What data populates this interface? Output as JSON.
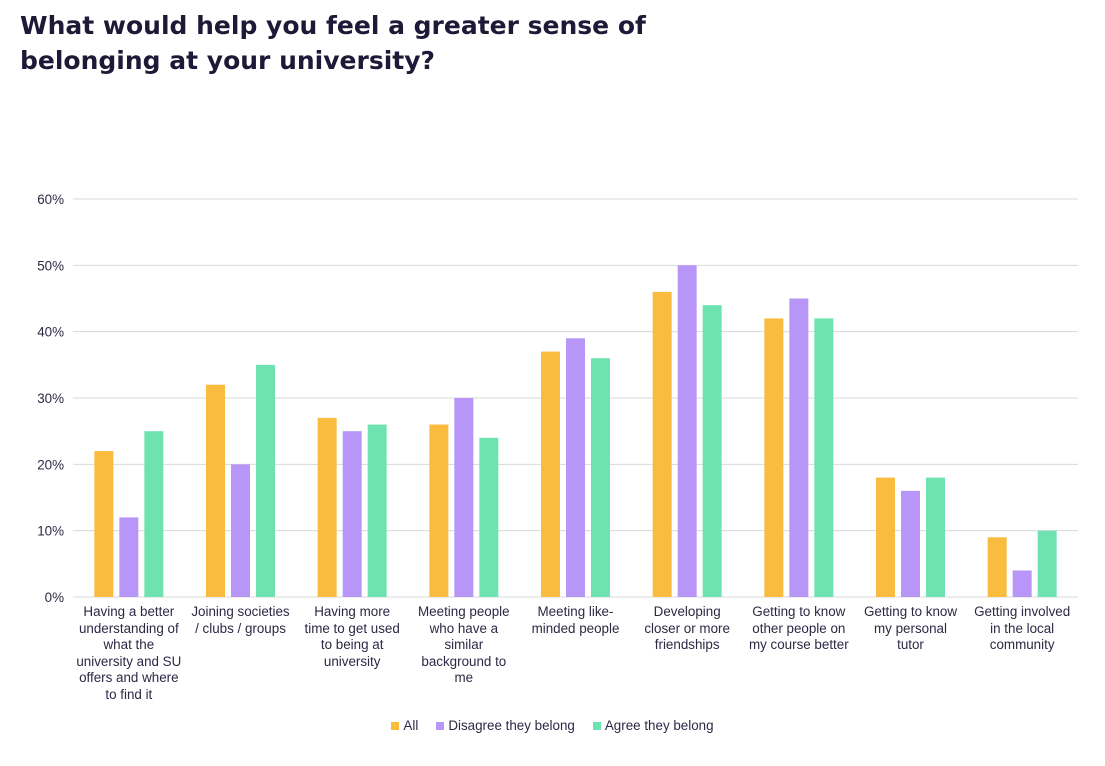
{
  "chart_data": {
    "type": "bar",
    "title": "What would help you feel a greater sense of belonging at your university?",
    "xlabel": "",
    "ylabel": "",
    "ylim": [
      0,
      60
    ],
    "yticks": [
      "0%",
      "10%",
      "20%",
      "30%",
      "40%",
      "50%",
      "60%"
    ],
    "grid": true,
    "legend_position": "bottom",
    "categories": [
      "Having a better understanding of what the university and SU offers and where to find it",
      "Joining societies / clubs / groups",
      "Having more time to get used to being at university",
      "Meeting people who have a similar background to me",
      "Meeting like-minded people",
      "Developing closer or more friendships",
      "Getting to know other people on my course better",
      "Getting to know my personal tutor",
      "Getting involved in the local community"
    ],
    "category_lines": [
      [
        "Having a better",
        "understanding of",
        "what the",
        "university and SU",
        "offers and where",
        "to find it"
      ],
      [
        "Joining societies",
        "/ clubs / groups"
      ],
      [
        "Having more",
        "time to get used",
        "to being at",
        "university"
      ],
      [
        "Meeting people",
        "who have a",
        "similar",
        "background to",
        "me"
      ],
      [
        "Meeting like-",
        "minded people"
      ],
      [
        "Developing",
        "closer or more",
        "friendships"
      ],
      [
        "Getting to know",
        "other people on",
        "my course better"
      ],
      [
        "Getting to know",
        "my personal",
        "tutor"
      ],
      [
        "Getting involved",
        "in the local",
        "community"
      ]
    ],
    "series": [
      {
        "name": "All",
        "color": "#F9BC3F",
        "values": [
          22,
          32,
          27,
          26,
          37,
          46,
          42,
          18,
          9
        ]
      },
      {
        "name": "Disagree they belong",
        "color": "#B896F8",
        "values": [
          12,
          20,
          25,
          30,
          39,
          50,
          45,
          16,
          4
        ]
      },
      {
        "name": "Agree they belong",
        "color": "#6EE3B0",
        "values": [
          25,
          35,
          26,
          24,
          36,
          44,
          42,
          18,
          10
        ]
      }
    ]
  }
}
